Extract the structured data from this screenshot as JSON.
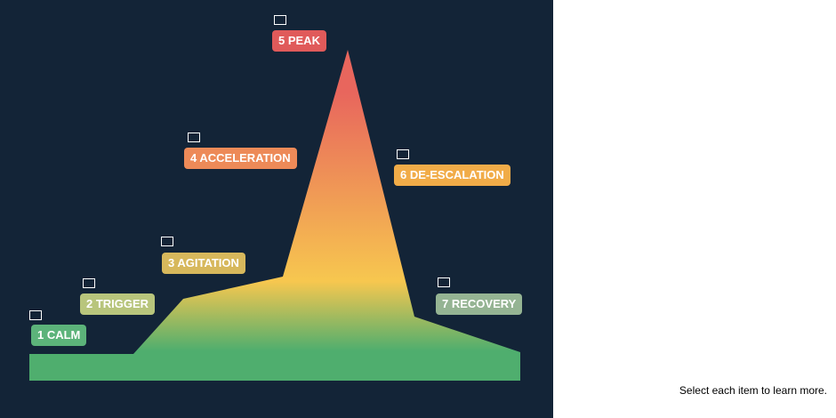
{
  "instruction": "Select each item to learn more.",
  "stages": [
    {
      "label": "1 CALM",
      "color": "#5cb37a"
    },
    {
      "label": "2 TRIGGER",
      "color": "#b8c57c"
    },
    {
      "label": "3 AGITATION",
      "color": "#d7b85c"
    },
    {
      "label": "4 ACCELERATION",
      "color": "#ed8a58"
    },
    {
      "label": "5 PEAK",
      "color": "#e05a5a"
    },
    {
      "label": "6 DE-ESCALATION",
      "color": "#f1ac48"
    },
    {
      "label": "7 RECOVERY",
      "color": "#95b493"
    }
  ],
  "colors": {
    "background": "#132437",
    "gradient_top": "#e8665d",
    "gradient_mid": "#f7c74f",
    "gradient_bottom": "#4fae6e"
  }
}
